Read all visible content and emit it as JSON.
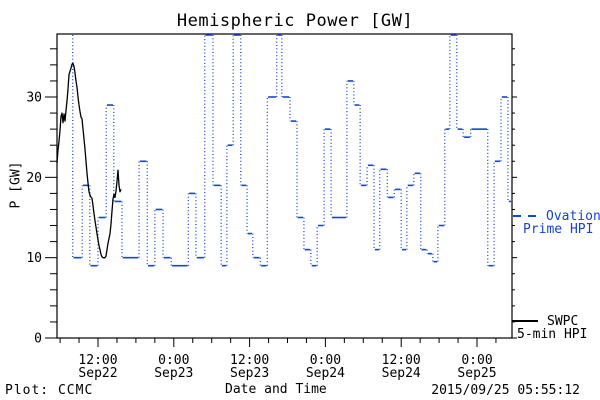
{
  "title": "Hemispheric Power [GW]",
  "legend": {
    "ovation_line1": "Ovation",
    "ovation_line2": "Prime HPI",
    "swpc_line1": "SWPC",
    "swpc_line2": "5-min HPI"
  },
  "footer": {
    "credit": "Plot: CCMC",
    "timestamp": "2015/09/25 05:55:12"
  },
  "colors": {
    "ovation_blue": "#1545d2",
    "swpc_black": "#000000",
    "frame": "#000000",
    "background": "#ffffff"
  },
  "chart_data": {
    "type": "line",
    "title": "Hemispheric Power [GW]",
    "xlabel": "Date and Time",
    "ylabel": "P [GW]",
    "x_unit": "hours since 2015-09-22 00:00 UT",
    "xlim": [
      5.5,
      77.5
    ],
    "ylim": [
      0,
      37.8
    ],
    "grid": false,
    "legend_position": "right-outside",
    "x_axis": {
      "major_ticks": [
        {
          "t": 12,
          "time": "12:00",
          "date": "Sep22"
        },
        {
          "t": 24,
          "time": "0:00",
          "date": "Sep23"
        },
        {
          "t": 36,
          "time": "12:00",
          "date": "Sep23"
        },
        {
          "t": 48,
          "time": "0:00",
          "date": "Sep24"
        },
        {
          "t": 60,
          "time": "12:00",
          "date": "Sep24"
        },
        {
          "t": 72,
          "time": "0:00",
          "date": "Sep25"
        }
      ],
      "minor_step_hours": 3
    },
    "y_axis": {
      "major_ticks": [
        0,
        10,
        20,
        30
      ],
      "minor_step": 2
    },
    "series": [
      {
        "name": "SWPC 5-min HPI",
        "style": "solid",
        "color": "#000000",
        "points": [
          [
            5.51,
            21.8
          ],
          [
            5.67,
            23.4
          ],
          [
            5.83,
            24.5
          ],
          [
            5.98,
            25.8
          ],
          [
            6.14,
            27.6
          ],
          [
            6.3,
            28.0
          ],
          [
            6.46,
            26.8
          ],
          [
            6.62,
            27.9
          ],
          [
            6.78,
            27.0
          ],
          [
            6.93,
            28.3
          ],
          [
            7.09,
            29.5
          ],
          [
            7.25,
            31.0
          ],
          [
            7.41,
            32.8
          ],
          [
            7.57,
            33.2
          ],
          [
            7.73,
            33.6
          ],
          [
            7.88,
            34.1
          ],
          [
            8.04,
            34.2
          ],
          [
            8.2,
            33.8
          ],
          [
            8.36,
            33.0
          ],
          [
            8.52,
            32.0
          ],
          [
            8.68,
            31.2
          ],
          [
            8.83,
            30.0
          ],
          [
            8.99,
            29.0
          ],
          [
            9.15,
            28.2
          ],
          [
            9.31,
            27.5
          ],
          [
            9.47,
            27.3
          ],
          [
            9.62,
            26.0
          ],
          [
            9.78,
            24.8
          ],
          [
            9.94,
            23.5
          ],
          [
            10.1,
            22.0
          ],
          [
            10.26,
            20.5
          ],
          [
            10.42,
            19.3
          ],
          [
            10.57,
            18.2
          ],
          [
            10.73,
            17.8
          ],
          [
            10.89,
            17.5
          ],
          [
            11.05,
            17.4
          ],
          [
            11.21,
            16.5
          ],
          [
            11.37,
            15.5
          ],
          [
            11.52,
            14.6
          ],
          [
            11.68,
            13.8
          ],
          [
            11.84,
            13.0
          ],
          [
            12.0,
            12.2
          ],
          [
            12.16,
            11.5
          ],
          [
            12.32,
            11.0
          ],
          [
            12.47,
            10.4
          ],
          [
            12.63,
            10.1
          ],
          [
            12.79,
            10.0
          ],
          [
            13.11,
            10.0
          ],
          [
            13.27,
            10.2
          ],
          [
            13.42,
            11.0
          ],
          [
            13.58,
            11.8
          ],
          [
            13.74,
            12.4
          ],
          [
            13.9,
            13.0
          ],
          [
            14.06,
            14.2
          ],
          [
            14.22,
            15.8
          ],
          [
            14.37,
            17.3
          ],
          [
            14.53,
            17.9
          ],
          [
            14.69,
            17.5
          ],
          [
            14.85,
            18.3
          ],
          [
            15.01,
            19.5
          ],
          [
            15.17,
            20.9
          ],
          [
            15.32,
            19.0
          ],
          [
            15.48,
            18.2
          ],
          [
            15.64,
            18.5
          ]
        ]
      },
      {
        "name": "Ovation Prime HPI",
        "style": "stepped-dotted",
        "color": "#1545d2",
        "clip_max": 37.8,
        "lead_in_from_top": true,
        "end_t": 77.5,
        "steps": [
          [
            8.0,
            10
          ],
          [
            9.5,
            19
          ],
          [
            10.7,
            9
          ],
          [
            12.0,
            15
          ],
          [
            13.3,
            29
          ],
          [
            14.5,
            17
          ],
          [
            15.8,
            10
          ],
          [
            18.5,
            22
          ],
          [
            19.8,
            9
          ],
          [
            21.0,
            16
          ],
          [
            22.3,
            10
          ],
          [
            23.6,
            9
          ],
          [
            26.3,
            18
          ],
          [
            27.5,
            10
          ],
          [
            28.9,
            38
          ],
          [
            30.2,
            19
          ],
          [
            31.5,
            9
          ],
          [
            32.4,
            24
          ],
          [
            33.4,
            38
          ],
          [
            34.6,
            19
          ],
          [
            35.6,
            13
          ],
          [
            36.5,
            10
          ],
          [
            37.7,
            9
          ],
          [
            38.8,
            30
          ],
          [
            40.3,
            38
          ],
          [
            41.1,
            30
          ],
          [
            42.4,
            27
          ],
          [
            43.5,
            15
          ],
          [
            44.6,
            11
          ],
          [
            45.7,
            9
          ],
          [
            46.7,
            14
          ],
          [
            47.8,
            26
          ],
          [
            48.9,
            15
          ],
          [
            51.4,
            32
          ],
          [
            52.5,
            29
          ],
          [
            53.5,
            19
          ],
          [
            54.6,
            21.5
          ],
          [
            55.7,
            11
          ],
          [
            56.6,
            21
          ],
          [
            57.8,
            17.5
          ],
          [
            58.9,
            18.5
          ],
          [
            60.0,
            11
          ],
          [
            60.9,
            19
          ],
          [
            62.0,
            20.5
          ],
          [
            63.1,
            11
          ],
          [
            64.1,
            10.5
          ],
          [
            65.0,
            9.5
          ],
          [
            65.8,
            14
          ],
          [
            66.9,
            26
          ],
          [
            67.7,
            38
          ],
          [
            68.8,
            26
          ],
          [
            69.8,
            25
          ],
          [
            71.0,
            26
          ],
          [
            73.7,
            9
          ],
          [
            74.7,
            22
          ],
          [
            75.8,
            30
          ],
          [
            76.9,
            17
          ]
        ]
      }
    ]
  }
}
